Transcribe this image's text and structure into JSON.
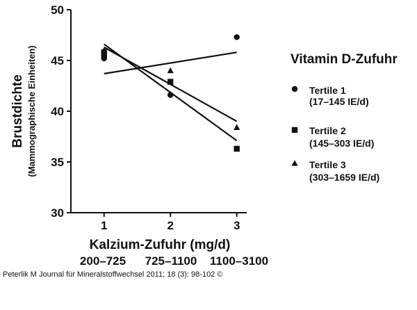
{
  "chart_data": {
    "type": "scatter",
    "xlabel": "Kalzium-Zufuhr (mg/d)",
    "ylabel": "Brustdichte",
    "ylabel_sub": "(Mammographische Einheiten)",
    "x_ticks": [
      1,
      2,
      3
    ],
    "x_range_labels": [
      "200–725",
      "725–1100",
      "1100–3100"
    ],
    "y_ticks": [
      30,
      35,
      40,
      45,
      50
    ],
    "xlim": [
      0.5,
      3.15
    ],
    "ylim": [
      30,
      50
    ],
    "legend_title": "Vitamin D-Zufuhr",
    "legend_position": "right",
    "series": [
      {
        "name": "Tertile 1",
        "range": "(17–145 IE/d)",
        "marker": "circle",
        "points": [
          [
            1,
            45.2
          ],
          [
            1,
            45.4
          ],
          [
            1,
            45.6
          ],
          [
            2,
            41.6
          ],
          [
            3,
            47.3
          ]
        ],
        "trend": [
          [
            1,
            43.7
          ],
          [
            3,
            45.8
          ]
        ]
      },
      {
        "name": "Tertile 2",
        "range": "(145–303 IE/d)",
        "marker": "square",
        "points": [
          [
            1,
            45.5
          ],
          [
            1,
            45.8
          ],
          [
            2,
            42.9
          ],
          [
            3,
            36.3
          ]
        ],
        "trend": [
          [
            1,
            46.6
          ],
          [
            3,
            37.1
          ]
        ]
      },
      {
        "name": "Tertile 3",
        "range": "(303–1659 IE/d)",
        "marker": "triangle",
        "points": [
          [
            1,
            46.0
          ],
          [
            2,
            44.0
          ],
          [
            3,
            38.4
          ]
        ],
        "trend": [
          [
            1,
            46.3
          ],
          [
            3,
            39.0
          ]
        ]
      }
    ]
  },
  "credit": "Peterlik M Journal für Mineralstoffwechsel 2011; 18 (3): 98-102 ©"
}
